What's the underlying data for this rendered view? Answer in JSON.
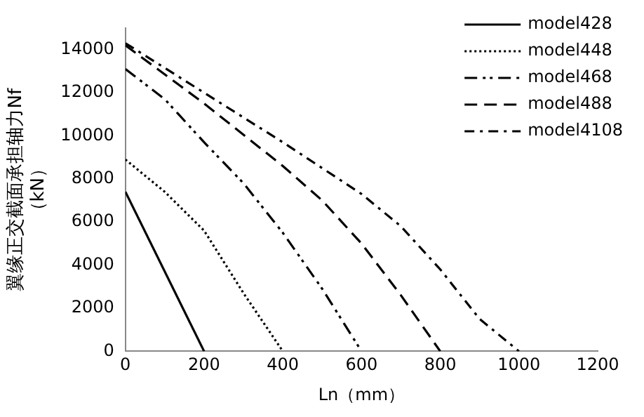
{
  "chart_data": {
    "type": "line",
    "xlabel": "Ln（mm）",
    "ylabel": "翼缘正交截面承担轴力Nf\n（kN）",
    "xlim": [
      0,
      1200
    ],
    "xticks": [
      0,
      200,
      400,
      600,
      800,
      1000,
      1200
    ],
    "ylim": [
      0,
      15000
    ],
    "yticks": [
      0,
      2000,
      4000,
      6000,
      8000,
      10000,
      12000,
      14000
    ],
    "grid": false,
    "legend": "top right",
    "marker": "none",
    "series": [
      {
        "name": "model428",
        "color": "#000000",
        "line_style": "solid",
        "x": [
          0,
          200
        ],
        "values": [
          7400,
          0
        ]
      },
      {
        "name": "model448",
        "color": "#000000",
        "line_style": "dotted",
        "x": [
          0,
          100,
          200,
          300,
          400
        ],
        "values": [
          8900,
          7400,
          5600,
          2700,
          0
        ]
      },
      {
        "name": "model468",
        "color": "#000000",
        "line_style": "dashdotdot",
        "x": [
          0,
          100,
          200,
          300,
          400,
          500,
          600
        ],
        "values": [
          13100,
          11700,
          9700,
          7800,
          5500,
          2900,
          0
        ]
      },
      {
        "name": "model488",
        "color": "#000000",
        "line_style": "dashed",
        "x": [
          0,
          200,
          400,
          500,
          600,
          700,
          800
        ],
        "values": [
          14200,
          11500,
          8600,
          7000,
          5000,
          2600,
          0
        ]
      },
      {
        "name": "model4108",
        "color": "#000000",
        "line_style": "dashdot",
        "x": [
          0,
          200,
          400,
          600,
          700,
          800,
          900,
          1000
        ],
        "values": [
          14300,
          12000,
          9700,
          7300,
          5800,
          3800,
          1500,
          0
        ]
      }
    ]
  }
}
